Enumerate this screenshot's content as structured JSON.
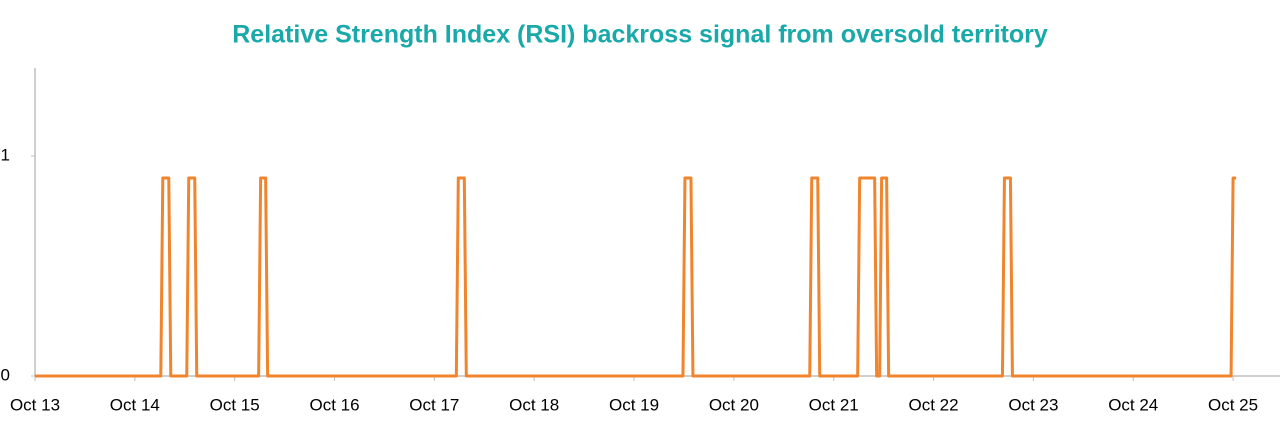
{
  "chart_data": {
    "type": "line",
    "title": "Relative Strength Index (RSI) backross signal from oversold territory",
    "x": [
      13,
      14.26,
      14.28,
      14.34,
      14.36,
      14.52,
      14.54,
      14.6,
      14.62,
      15.24,
      15.26,
      15.31,
      15.33,
      17.22,
      17.24,
      17.3,
      17.32,
      19.49,
      19.51,
      19.57,
      19.59,
      20.76,
      20.78,
      20.84,
      20.86,
      21.24,
      21.26,
      21.41,
      21.43,
      21.46,
      21.48,
      21.53,
      21.55,
      22.69,
      22.71,
      22.77,
      22.79,
      24.98,
      25.0,
      25.03
    ],
    "series": [
      {
        "color": "#f0852d",
        "values": [
          0,
          0,
          0.9,
          0.9,
          0,
          0,
          0.9,
          0.9,
          0,
          0,
          0.9,
          0.9,
          0,
          0,
          0.9,
          0.9,
          0,
          0,
          0.9,
          0.9,
          0,
          0,
          0.9,
          0.9,
          0,
          0,
          0.9,
          0.9,
          0,
          0,
          0.9,
          0.9,
          0,
          0,
          0.9,
          0.9,
          0,
          0,
          0.9,
          0.9
        ]
      }
    ],
    "xlim": [
      13,
      25.47
    ],
    "xticks": [
      {
        "value": 13,
        "label": "Oct 13"
      },
      {
        "value": 14,
        "label": "Oct 14"
      },
      {
        "value": 15,
        "label": "Oct 15"
      },
      {
        "value": 16,
        "label": "Oct 16"
      },
      {
        "value": 17,
        "label": "Oct 17"
      },
      {
        "value": 18,
        "label": "Oct 18"
      },
      {
        "value": 19,
        "label": "Oct 19"
      },
      {
        "value": 20,
        "label": "Oct 20"
      },
      {
        "value": 21,
        "label": "Oct 21"
      },
      {
        "value": 22,
        "label": "Oct 22"
      },
      {
        "value": 23,
        "label": "Oct 23"
      },
      {
        "value": 24,
        "label": "Oct 24"
      },
      {
        "value": 25,
        "label": "Oct 25"
      }
    ],
    "ylim": [
      0,
      1.4
    ],
    "yticks": [
      0,
      1
    ],
    "grid": false
  }
}
